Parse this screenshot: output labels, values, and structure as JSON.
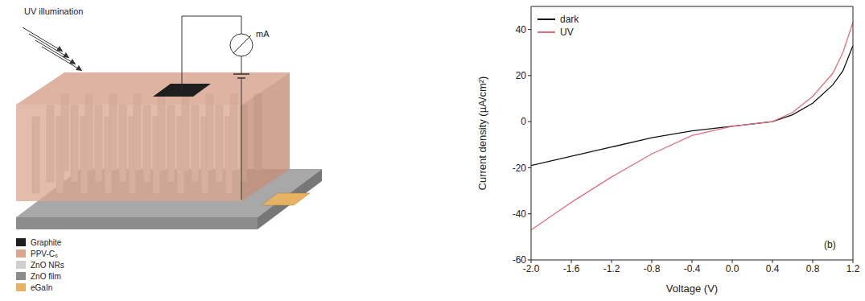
{
  "diagram": {
    "illumination": "UV illumination",
    "meter": "mA",
    "legend": [
      {
        "label": "Graphite",
        "color": "#1e1e1e"
      },
      {
        "label": "PPV-C₆",
        "color": "#d9a690"
      },
      {
        "label": "ZnO NRs",
        "color": "#cfcfcf"
      },
      {
        "label": "ZnO film",
        "color": "#8c8c8c"
      },
      {
        "label": "eGaIn",
        "color": "#e8b264"
      }
    ]
  },
  "chart_data": {
    "type": "line",
    "x_label": "Voltage (V)",
    "y_label": "Current density (µA/cm²)",
    "annotation": "(b)",
    "x": [
      -2.0,
      -1.6,
      -1.2,
      -0.8,
      -0.4,
      0.0,
      0.4,
      0.6,
      0.8,
      1.0,
      1.1,
      1.2
    ],
    "series": [
      {
        "name": "dark",
        "color": "#111111",
        "values": [
          -19,
          -15,
          -11,
          -7,
          -4,
          -2,
          0,
          3,
          8,
          16,
          22,
          33
        ]
      },
      {
        "name": "UV",
        "color": "#e0707f",
        "values": [
          -47,
          -35,
          -24,
          -14,
          -6,
          -2,
          0,
          4,
          11,
          21,
          30,
          43
        ]
      }
    ],
    "xlim": [
      -2.0,
      1.2
    ],
    "xticks": [
      {
        "value": -2,
        "label": "-2.0"
      },
      -1.6,
      -1.2,
      -0.8,
      -0.4,
      {
        "value": 0,
        "label": "0.0"
      },
      0.4,
      0.8,
      1.2
    ],
    "ylim": [
      -60,
      50
    ],
    "yticks": [
      -60,
      -40,
      -20,
      0,
      20,
      40
    ],
    "legend": "upper left",
    "grid": false
  }
}
